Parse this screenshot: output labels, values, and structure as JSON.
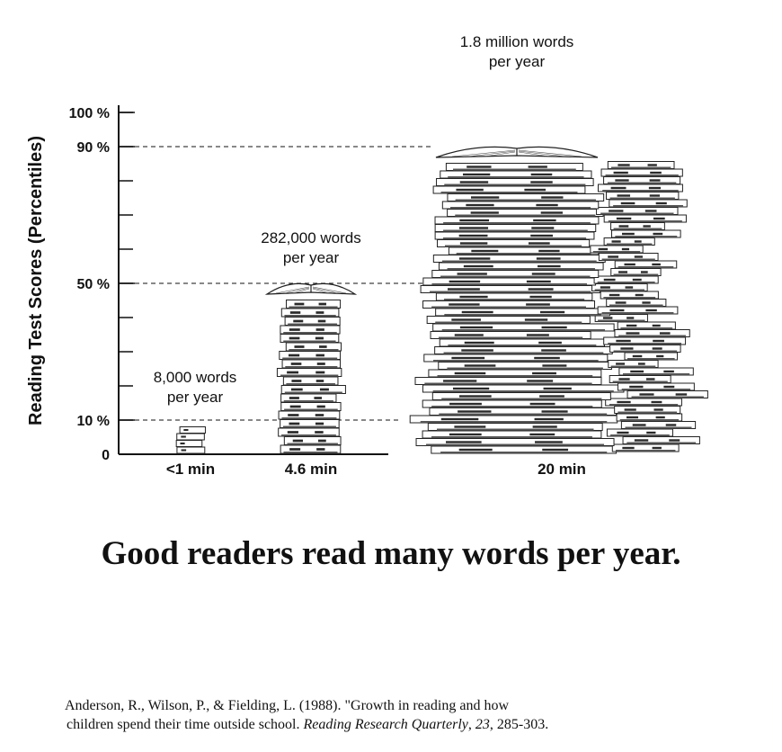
{
  "chart_data": {
    "type": "bar",
    "ylabel": "Reading Test Scores (Percentiles)",
    "y_ticks": [
      {
        "label": "100 %",
        "value": 100
      },
      {
        "label": "90 %",
        "value": 90
      },
      {
        "label": "50 %",
        "value": 50
      },
      {
        "label": "10 %",
        "value": 10
      },
      {
        "label": "0",
        "value": 0
      }
    ],
    "ylim": [
      0,
      100
    ],
    "categories": [
      "<1 min",
      "4.6 min",
      "20 min"
    ],
    "values": [
      10,
      50,
      90
    ],
    "annotations": [
      {
        "line1": "8,000 words",
        "line2": "per year"
      },
      {
        "line1": "282,000 words",
        "line2": "per year"
      },
      {
        "line1": "1.8 million words",
        "line2": "per year"
      }
    ],
    "reference_lines": [
      10,
      50,
      90
    ],
    "bar_style": "stacked books",
    "grid": false
  },
  "title": "Good readers read many words per year.",
  "citation": {
    "line1": "Anderson, R., Wilson, P., & Fielding, L.  (1988). \"Growth in reading and how",
    "line2_plain": "children spend their time outside school.  ",
    "journal": "Reading Research Quarterly",
    "sep": ", ",
    "volume": "23",
    "pages": ", 285-303."
  }
}
